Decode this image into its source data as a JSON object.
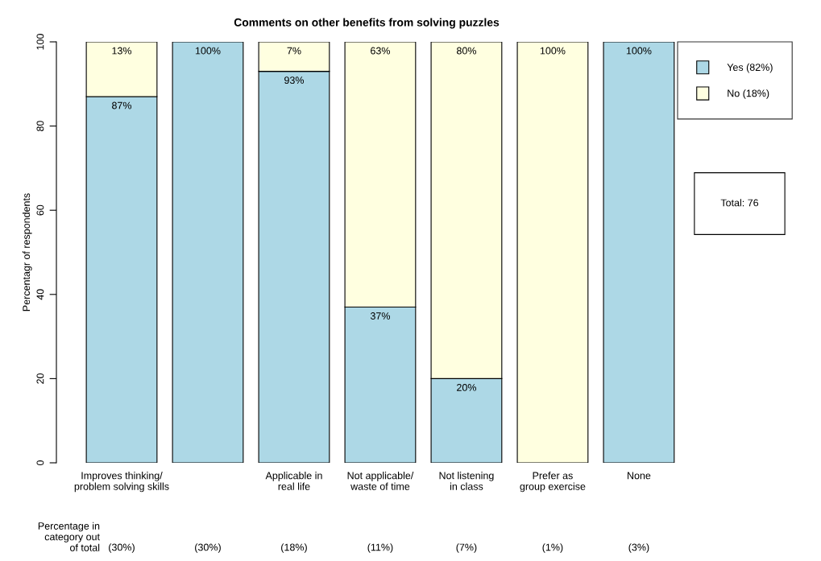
{
  "chart_data": {
    "type": "bar",
    "title": "Comments on other benefits from solving puzzles",
    "ylabel": "Percentagr of respondents",
    "stacked": true,
    "categories": [
      "Improves thinking/\nproblem solving skills",
      null,
      "Applicable in\nreal life",
      "Not applicable/\nwaste of time",
      "Not listening\nin class",
      "Prefer as\ngroup exercise",
      "None"
    ],
    "series": [
      {
        "name": "Yes (82%)",
        "color": "#add8e6",
        "values": [
          87,
          100,
          93,
          37,
          20,
          0,
          100
        ],
        "value_labels": [
          "87%",
          "100%",
          "93%",
          "37%",
          "20%",
          null,
          "100%"
        ]
      },
      {
        "name": "No (18%)",
        "color": "#ffffe0",
        "values": [
          13,
          0,
          7,
          63,
          80,
          100,
          0
        ],
        "value_labels": [
          "13%",
          null,
          "7%",
          "63%",
          "80%",
          "100%",
          null
        ]
      }
    ],
    "ylim": [
      0,
      100
    ],
    "yticks": [
      0,
      20,
      40,
      60,
      80,
      100
    ],
    "grid": false,
    "legend": "right",
    "annotations": [
      "Percentage in\ncategory out\nof total",
      "(30%)",
      "(30%)",
      "(18%)",
      "(11%)",
      "(7%)",
      "(1%)",
      "(3%)",
      "Total: 76"
    ]
  }
}
